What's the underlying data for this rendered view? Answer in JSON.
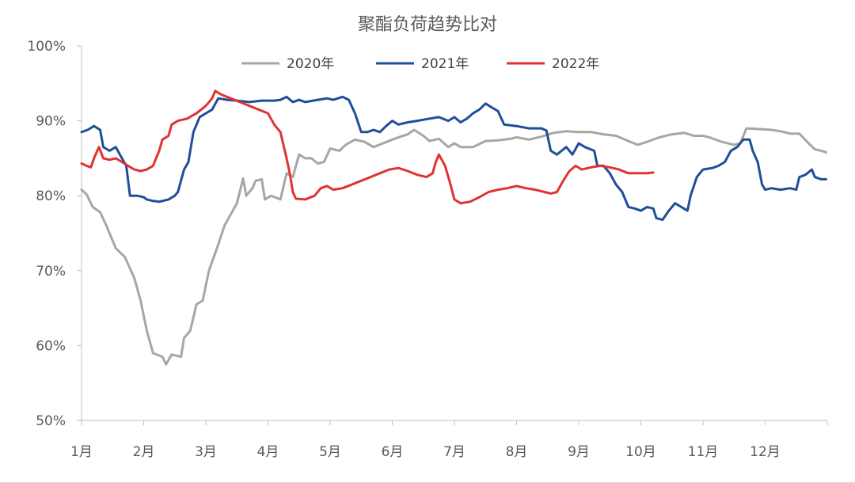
{
  "chart_data": {
    "type": "line",
    "title": "聚酯负荷趋势比对",
    "xlabel": "",
    "ylabel": "",
    "y_tick_labels": [
      "50%",
      "60%",
      "70%",
      "80%",
      "90%",
      "100%"
    ],
    "y_ticks": [
      50,
      60,
      70,
      80,
      90,
      100
    ],
    "ylim": [
      50,
      100
    ],
    "x_tick_labels": [
      "1月",
      "2月",
      "3月",
      "4月",
      "5月",
      "6月",
      "7月",
      "8月",
      "9月",
      "10月",
      "11月",
      "12月"
    ],
    "xlim": [
      0,
      12
    ],
    "x_unit": "month",
    "grid": false,
    "legend_position": "top",
    "series": [
      {
        "name": "2020年",
        "color": "#a6a6a6",
        "points": [
          [
            0.0,
            80.8
          ],
          [
            0.08,
            80.2
          ],
          [
            0.18,
            78.5
          ],
          [
            0.3,
            77.8
          ],
          [
            0.4,
            76.0
          ],
          [
            0.55,
            73.0
          ],
          [
            0.7,
            71.8
          ],
          [
            0.85,
            69.0
          ],
          [
            0.95,
            66.0
          ],
          [
            1.05,
            62.0
          ],
          [
            1.15,
            59.0
          ],
          [
            1.3,
            58.5
          ],
          [
            1.36,
            57.5
          ],
          [
            1.45,
            58.8
          ],
          [
            1.6,
            58.5
          ],
          [
            1.65,
            61.0
          ],
          [
            1.75,
            62.0
          ],
          [
            1.85,
            65.5
          ],
          [
            1.95,
            66.0
          ],
          [
            2.05,
            70.0
          ],
          [
            2.2,
            73.5
          ],
          [
            2.3,
            76.0
          ],
          [
            2.4,
            77.5
          ],
          [
            2.5,
            79.0
          ],
          [
            2.6,
            82.3
          ],
          [
            2.65,
            80.0
          ],
          [
            2.75,
            81.0
          ],
          [
            2.8,
            82.0
          ],
          [
            2.9,
            82.2
          ],
          [
            2.95,
            79.5
          ],
          [
            3.05,
            80.0
          ],
          [
            3.2,
            79.5
          ],
          [
            3.3,
            83.0
          ],
          [
            3.4,
            82.5
          ],
          [
            3.5,
            85.5
          ],
          [
            3.6,
            85.0
          ],
          [
            3.7,
            85.0
          ],
          [
            3.8,
            84.3
          ],
          [
            3.9,
            84.5
          ],
          [
            4.0,
            86.3
          ],
          [
            4.15,
            86.0
          ],
          [
            4.25,
            86.8
          ],
          [
            4.4,
            87.5
          ],
          [
            4.55,
            87.2
          ],
          [
            4.7,
            86.5
          ],
          [
            4.85,
            87.0
          ],
          [
            5.0,
            87.5
          ],
          [
            5.1,
            87.8
          ],
          [
            5.25,
            88.2
          ],
          [
            5.35,
            88.8
          ],
          [
            5.5,
            88.0
          ],
          [
            5.6,
            87.3
          ],
          [
            5.75,
            87.6
          ],
          [
            5.9,
            86.5
          ],
          [
            6.0,
            87.0
          ],
          [
            6.1,
            86.5
          ],
          [
            6.3,
            86.5
          ],
          [
            6.5,
            87.3
          ],
          [
            6.7,
            87.4
          ],
          [
            6.9,
            87.6
          ],
          [
            7.0,
            87.8
          ],
          [
            7.2,
            87.5
          ],
          [
            7.4,
            87.9
          ],
          [
            7.6,
            88.4
          ],
          [
            7.8,
            88.6
          ],
          [
            8.0,
            88.5
          ],
          [
            8.2,
            88.5
          ],
          [
            8.4,
            88.2
          ],
          [
            8.6,
            88.0
          ],
          [
            8.8,
            87.3
          ],
          [
            8.95,
            86.8
          ],
          [
            9.1,
            87.2
          ],
          [
            9.3,
            87.8
          ],
          [
            9.5,
            88.2
          ],
          [
            9.7,
            88.4
          ],
          [
            9.85,
            88.0
          ],
          [
            10.0,
            88.0
          ],
          [
            10.1,
            87.8
          ],
          [
            10.3,
            87.2
          ],
          [
            10.5,
            86.8
          ],
          [
            10.6,
            87.0
          ],
          [
            10.7,
            89.0
          ],
          [
            10.9,
            88.9
          ],
          [
            11.1,
            88.8
          ],
          [
            11.25,
            88.6
          ],
          [
            11.4,
            88.3
          ],
          [
            11.55,
            88.3
          ],
          [
            11.7,
            87.0
          ],
          [
            11.8,
            86.2
          ],
          [
            11.9,
            86.0
          ],
          [
            11.98,
            85.8
          ]
        ]
      },
      {
        "name": "2021年",
        "color": "#1f4e9a",
        "points": [
          [
            0.0,
            88.5
          ],
          [
            0.1,
            88.8
          ],
          [
            0.2,
            89.3
          ],
          [
            0.3,
            88.8
          ],
          [
            0.35,
            86.5
          ],
          [
            0.45,
            86.0
          ],
          [
            0.55,
            86.5
          ],
          [
            0.65,
            85.0
          ],
          [
            0.72,
            84.0
          ],
          [
            0.78,
            80.0
          ],
          [
            0.9,
            80.0
          ],
          [
            1.0,
            79.8
          ],
          [
            1.05,
            79.5
          ],
          [
            1.15,
            79.3
          ],
          [
            1.25,
            79.2
          ],
          [
            1.4,
            79.5
          ],
          [
            1.5,
            80.0
          ],
          [
            1.55,
            80.5
          ],
          [
            1.65,
            83.5
          ],
          [
            1.72,
            84.5
          ],
          [
            1.8,
            88.5
          ],
          [
            1.9,
            90.5
          ],
          [
            2.0,
            91.0
          ],
          [
            2.1,
            91.5
          ],
          [
            2.2,
            93.0
          ],
          [
            2.35,
            92.8
          ],
          [
            2.5,
            92.7
          ],
          [
            2.7,
            92.5
          ],
          [
            2.9,
            92.7
          ],
          [
            3.1,
            92.7
          ],
          [
            3.2,
            92.8
          ],
          [
            3.3,
            93.2
          ],
          [
            3.4,
            92.5
          ],
          [
            3.5,
            92.8
          ],
          [
            3.6,
            92.5
          ],
          [
            3.8,
            92.8
          ],
          [
            3.95,
            93.0
          ],
          [
            4.05,
            92.8
          ],
          [
            4.2,
            93.2
          ],
          [
            4.3,
            92.8
          ],
          [
            4.4,
            91.0
          ],
          [
            4.5,
            88.5
          ],
          [
            4.6,
            88.5
          ],
          [
            4.7,
            88.8
          ],
          [
            4.8,
            88.5
          ],
          [
            4.9,
            89.3
          ],
          [
            5.0,
            90.0
          ],
          [
            5.1,
            89.5
          ],
          [
            5.25,
            89.8
          ],
          [
            5.4,
            90.0
          ],
          [
            5.6,
            90.3
          ],
          [
            5.75,
            90.5
          ],
          [
            5.9,
            90.0
          ],
          [
            6.0,
            90.5
          ],
          [
            6.1,
            89.8
          ],
          [
            6.2,
            90.3
          ],
          [
            6.3,
            91.0
          ],
          [
            6.4,
            91.5
          ],
          [
            6.5,
            92.3
          ],
          [
            6.6,
            91.8
          ],
          [
            6.7,
            91.3
          ],
          [
            6.8,
            89.5
          ],
          [
            7.0,
            89.3
          ],
          [
            7.2,
            89.0
          ],
          [
            7.4,
            89.0
          ],
          [
            7.48,
            88.7
          ],
          [
            7.55,
            86.0
          ],
          [
            7.65,
            85.5
          ],
          [
            7.8,
            86.5
          ],
          [
            7.9,
            85.5
          ],
          [
            8.0,
            87.0
          ],
          [
            8.1,
            86.5
          ],
          [
            8.25,
            86.0
          ],
          [
            8.3,
            84.0
          ],
          [
            8.4,
            84.0
          ],
          [
            8.5,
            83.0
          ],
          [
            8.6,
            81.5
          ],
          [
            8.7,
            80.5
          ],
          [
            8.8,
            78.5
          ],
          [
            8.9,
            78.3
          ],
          [
            9.0,
            78.0
          ],
          [
            9.1,
            78.5
          ],
          [
            9.2,
            78.3
          ],
          [
            9.25,
            77.0
          ],
          [
            9.35,
            76.8
          ],
          [
            9.45,
            78.0
          ],
          [
            9.55,
            79.0
          ],
          [
            9.65,
            78.5
          ],
          [
            9.75,
            78.0
          ],
          [
            9.8,
            80.0
          ],
          [
            9.9,
            82.5
          ],
          [
            10.0,
            83.5
          ],
          [
            10.15,
            83.7
          ],
          [
            10.25,
            84.0
          ],
          [
            10.35,
            84.5
          ],
          [
            10.45,
            86.0
          ],
          [
            10.55,
            86.5
          ],
          [
            10.65,
            87.5
          ],
          [
            10.75,
            87.5
          ],
          [
            10.8,
            86.0
          ],
          [
            10.88,
            84.5
          ],
          [
            10.95,
            81.5
          ],
          [
            11.0,
            80.8
          ],
          [
            11.1,
            81.0
          ],
          [
            11.25,
            80.8
          ],
          [
            11.4,
            81.0
          ],
          [
            11.5,
            80.8
          ],
          [
            11.55,
            82.5
          ],
          [
            11.65,
            82.8
          ],
          [
            11.75,
            83.5
          ],
          [
            11.8,
            82.5
          ],
          [
            11.9,
            82.2
          ],
          [
            11.98,
            82.2
          ]
        ]
      },
      {
        "name": "2022年",
        "color": "#e03232",
        "points": [
          [
            0.0,
            84.3
          ],
          [
            0.08,
            84.0
          ],
          [
            0.15,
            83.8
          ],
          [
            0.2,
            85.0
          ],
          [
            0.28,
            86.5
          ],
          [
            0.35,
            85.0
          ],
          [
            0.45,
            84.8
          ],
          [
            0.55,
            85.0
          ],
          [
            0.65,
            84.5
          ],
          [
            0.75,
            84.0
          ],
          [
            0.85,
            83.5
          ],
          [
            0.95,
            83.3
          ],
          [
            1.05,
            83.5
          ],
          [
            1.15,
            84.0
          ],
          [
            1.25,
            86.0
          ],
          [
            1.3,
            87.5
          ],
          [
            1.4,
            88.0
          ],
          [
            1.45,
            89.5
          ],
          [
            1.55,
            90.0
          ],
          [
            1.7,
            90.3
          ],
          [
            1.85,
            91.0
          ],
          [
            2.0,
            92.0
          ],
          [
            2.1,
            93.0
          ],
          [
            2.15,
            94.0
          ],
          [
            2.25,
            93.5
          ],
          [
            2.4,
            93.0
          ],
          [
            2.55,
            92.5
          ],
          [
            2.7,
            92.0
          ],
          [
            2.85,
            91.5
          ],
          [
            3.0,
            91.0
          ],
          [
            3.1,
            89.5
          ],
          [
            3.2,
            88.5
          ],
          [
            3.3,
            85.0
          ],
          [
            3.35,
            83.0
          ],
          [
            3.4,
            80.5
          ],
          [
            3.45,
            79.6
          ],
          [
            3.6,
            79.5
          ],
          [
            3.75,
            80.0
          ],
          [
            3.85,
            81.0
          ],
          [
            3.95,
            81.3
          ],
          [
            4.05,
            80.8
          ],
          [
            4.2,
            81.0
          ],
          [
            4.35,
            81.5
          ],
          [
            4.5,
            82.0
          ],
          [
            4.65,
            82.5
          ],
          [
            4.8,
            83.0
          ],
          [
            4.95,
            83.5
          ],
          [
            5.1,
            83.7
          ],
          [
            5.25,
            83.3
          ],
          [
            5.4,
            82.8
          ],
          [
            5.55,
            82.5
          ],
          [
            5.65,
            83.0
          ],
          [
            5.7,
            84.5
          ],
          [
            5.75,
            85.5
          ],
          [
            5.85,
            84.0
          ],
          [
            5.92,
            82.0
          ],
          [
            6.0,
            79.5
          ],
          [
            6.1,
            79.0
          ],
          [
            6.25,
            79.2
          ],
          [
            6.4,
            79.8
          ],
          [
            6.55,
            80.5
          ],
          [
            6.7,
            80.8
          ],
          [
            6.85,
            81.0
          ],
          [
            7.0,
            81.3
          ],
          [
            7.15,
            81.0
          ],
          [
            7.3,
            80.8
          ],
          [
            7.45,
            80.5
          ],
          [
            7.55,
            80.3
          ],
          [
            7.65,
            80.5
          ],
          [
            7.75,
            82.0
          ],
          [
            7.85,
            83.3
          ],
          [
            7.95,
            84.0
          ],
          [
            8.05,
            83.5
          ],
          [
            8.2,
            83.8
          ],
          [
            8.35,
            84.0
          ],
          [
            8.5,
            83.8
          ],
          [
            8.65,
            83.5
          ],
          [
            8.8,
            83.0
          ],
          [
            8.95,
            83.0
          ],
          [
            9.1,
            83.0
          ],
          [
            9.2,
            83.1
          ]
        ]
      }
    ]
  }
}
